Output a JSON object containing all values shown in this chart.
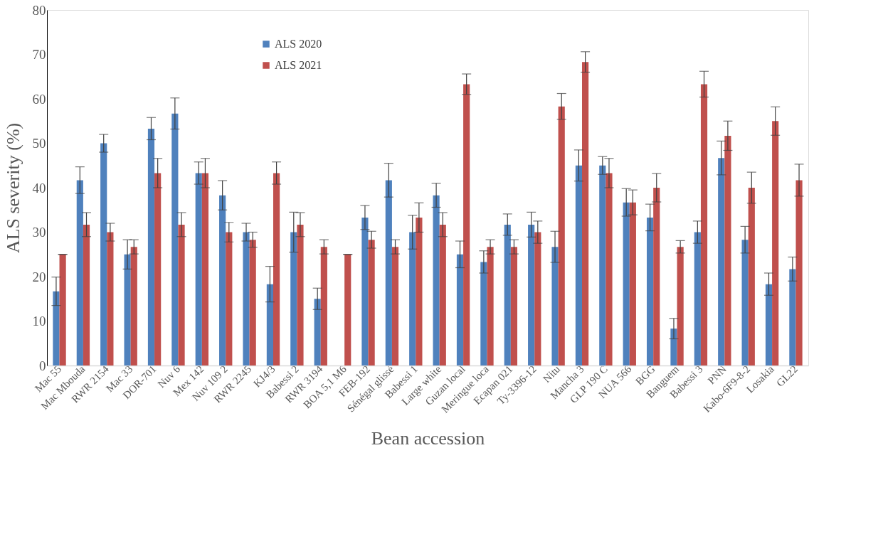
{
  "chart_data": {
    "type": "bar",
    "xlabel": "Bean accession",
    "ylabel": "ALS severity  (%)",
    "categories": [
      "Mac 55",
      "Mac Mbouda",
      "RWR 2154",
      "Mac 33",
      "DOR-701",
      "Nuv 6",
      "Mex 142",
      "Nuv 109 2",
      "RWR 2245",
      "KJ4/3",
      "Babessi 2",
      "RWR 3194",
      "BOA 5,1 M6",
      "FEB-192",
      "Sénégal glissé",
      "Babessi 1",
      "Large white",
      "Guzan local",
      "Meringue loca",
      "Ecapan 021",
      "Ty-3396-12",
      "Nitu",
      "Mancha 3",
      "GLP 190 C",
      "NUA 566",
      "BGG",
      "Banguem",
      "Babessi 3",
      "PNN",
      "Kabo-6F9-8-2",
      "Losakia",
      "GL22"
    ],
    "series": [
      {
        "name": "ALS 2020",
        "color": "#4f81bd",
        "values": [
          16.7,
          41.7,
          50,
          25,
          53.3,
          56.7,
          43.3,
          38.3,
          30,
          18.3,
          30,
          15,
          null,
          33.3,
          41.7,
          30,
          38.3,
          25,
          23.3,
          31.7,
          31.7,
          26.7,
          45,
          45,
          36.7,
          33.3,
          8.3,
          30,
          46.7,
          28.3,
          18.3,
          21.7
        ],
        "errors": [
          3.2,
          3,
          2,
          3.3,
          2.5,
          3.5,
          2.5,
          3.3,
          2,
          4,
          4.5,
          2.4,
          null,
          2.7,
          3.8,
          3.8,
          2.7,
          3,
          2.5,
          2.4,
          2.8,
          3.5,
          3.5,
          2,
          3.1,
          3,
          2.3,
          2.5,
          3.8,
          3,
          2.5,
          2.7
        ]
      },
      {
        "name": "ALS 2021",
        "color": "#c0504d",
        "values": [
          25,
          31.7,
          30,
          26.7,
          43.3,
          31.7,
          43.3,
          30,
          28.3,
          43.3,
          31.7,
          26.7,
          25,
          28.3,
          26.7,
          33.3,
          31.7,
          63.3,
          26.7,
          26.7,
          30,
          58.3,
          68.3,
          43.3,
          36.7,
          40,
          26.7,
          63.3,
          51.7,
          40,
          55,
          41.7
        ],
        "errors": [
          0,
          2.7,
          2,
          1.6,
          3.3,
          2.7,
          3.3,
          2.2,
          1.7,
          2.5,
          2.7,
          1.6,
          0,
          1.9,
          1.6,
          3.3,
          2.7,
          2.3,
          1.6,
          1.6,
          2.5,
          2.9,
          2.3,
          3.3,
          2.8,
          3.2,
          1.4,
          2.9,
          3.3,
          3.5,
          3.2,
          3.6
        ]
      }
    ],
    "ylim": [
      0,
      80
    ],
    "yticks": [
      0,
      10,
      20,
      30,
      40,
      50,
      60,
      70,
      80
    ],
    "grid": false,
    "legend": "top left"
  }
}
